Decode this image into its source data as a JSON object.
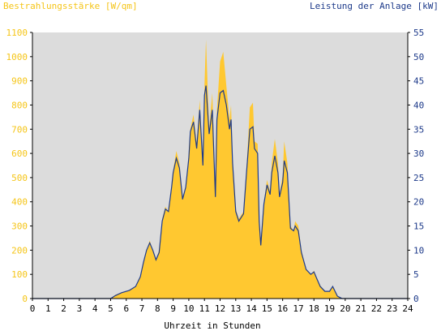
{
  "colors": {
    "irradiance": "#ffc830",
    "power": "#1d3a8a",
    "plot_bg": "#dcdcdc",
    "left_axis_text": "#f5c518",
    "right_axis_text": "#1d3a8a"
  },
  "chart_data": {
    "type": "area",
    "title_left": "Bestrahlungsstärke [W/qm]",
    "title_right": "Leistung der Anlage [kW]",
    "xlabel": "Uhrzeit in Stunden",
    "x_ticks": [
      "0",
      "1",
      "2",
      "3",
      "4",
      "5",
      "6",
      "7",
      "8",
      "9",
      "10",
      "11",
      "12",
      "13",
      "14",
      "15",
      "16",
      "17",
      "18",
      "19",
      "20",
      "21",
      "22",
      "23",
      "24"
    ],
    "y_left_ticks": [
      "0",
      "100",
      "200",
      "300",
      "400",
      "500",
      "600",
      "700",
      "800",
      "900",
      "1000",
      "1100"
    ],
    "y_right_ticks": [
      "0",
      "5",
      "10",
      "15",
      "20",
      "25",
      "30",
      "35",
      "40",
      "45",
      "50",
      "55"
    ],
    "xlim": [
      0,
      24
    ],
    "ylim_left": [
      0,
      1100
    ],
    "ylim_right": [
      0,
      55
    ],
    "grid": false,
    "series": [
      {
        "type": "area",
        "axis": "left",
        "color": "#ffc830",
        "points": [
          [
            0,
            0
          ],
          [
            5.0,
            0
          ],
          [
            5.3,
            15
          ],
          [
            5.7,
            25
          ],
          [
            6.2,
            35
          ],
          [
            6.6,
            50
          ],
          [
            6.9,
            90
          ],
          [
            7.1,
            150
          ],
          [
            7.3,
            200
          ],
          [
            7.5,
            240
          ],
          [
            7.7,
            200
          ],
          [
            7.9,
            160
          ],
          [
            8.1,
            200
          ],
          [
            8.3,
            330
          ],
          [
            8.5,
            380
          ],
          [
            8.7,
            360
          ],
          [
            8.9,
            460
          ],
          [
            9.0,
            530
          ],
          [
            9.2,
            610
          ],
          [
            9.4,
            560
          ],
          [
            9.6,
            420
          ],
          [
            9.8,
            460
          ],
          [
            10.0,
            600
          ],
          [
            10.1,
            700
          ],
          [
            10.3,
            760
          ],
          [
            10.5,
            640
          ],
          [
            10.7,
            820
          ],
          [
            10.9,
            560
          ],
          [
            11.0,
            880
          ],
          [
            11.1,
            1070
          ],
          [
            11.3,
            700
          ],
          [
            11.5,
            850
          ],
          [
            11.7,
            430
          ],
          [
            11.8,
            780
          ],
          [
            12.0,
            980
          ],
          [
            12.2,
            1020
          ],
          [
            12.4,
            880
          ],
          [
            12.6,
            740
          ],
          [
            12.7,
            800
          ],
          [
            12.8,
            580
          ],
          [
            13.0,
            370
          ],
          [
            13.2,
            330
          ],
          [
            13.5,
            360
          ],
          [
            13.7,
            550
          ],
          [
            13.9,
            790
          ],
          [
            14.1,
            810
          ],
          [
            14.2,
            650
          ],
          [
            14.4,
            640
          ],
          [
            14.5,
            330
          ],
          [
            14.6,
            240
          ],
          [
            14.8,
            400
          ],
          [
            15.0,
            490
          ],
          [
            15.2,
            440
          ],
          [
            15.3,
            560
          ],
          [
            15.5,
            660
          ],
          [
            15.7,
            560
          ],
          [
            15.8,
            430
          ],
          [
            16.0,
            510
          ],
          [
            16.1,
            650
          ],
          [
            16.3,
            560
          ],
          [
            16.5,
            300
          ],
          [
            16.7,
            280
          ],
          [
            16.8,
            320
          ],
          [
            17.0,
            300
          ],
          [
            17.2,
            200
          ],
          [
            17.5,
            120
          ],
          [
            17.8,
            100
          ],
          [
            18.0,
            115
          ],
          [
            18.2,
            80
          ],
          [
            18.4,
            55
          ],
          [
            18.7,
            30
          ],
          [
            19.0,
            30
          ],
          [
            19.2,
            50
          ],
          [
            19.5,
            10
          ],
          [
            19.8,
            0
          ],
          [
            24,
            0
          ]
        ]
      },
      {
        "type": "line",
        "axis": "right",
        "color": "#1d3a8a",
        "points": [
          [
            0,
            0
          ],
          [
            5.0,
            0
          ],
          [
            5.3,
            0.6
          ],
          [
            5.7,
            1.2
          ],
          [
            6.2,
            1.7
          ],
          [
            6.6,
            2.5
          ],
          [
            6.9,
            4.5
          ],
          [
            7.1,
            7.5
          ],
          [
            7.3,
            10
          ],
          [
            7.5,
            11.5
          ],
          [
            7.7,
            10
          ],
          [
            7.9,
            8
          ],
          [
            8.1,
            9.5
          ],
          [
            8.3,
            16
          ],
          [
            8.5,
            18.5
          ],
          [
            8.7,
            18
          ],
          [
            8.9,
            23
          ],
          [
            9.0,
            26
          ],
          [
            9.2,
            29
          ],
          [
            9.4,
            27
          ],
          [
            9.6,
            20.5
          ],
          [
            9.8,
            23
          ],
          [
            10.0,
            29
          ],
          [
            10.1,
            34.5
          ],
          [
            10.3,
            36.5
          ],
          [
            10.5,
            31
          ],
          [
            10.7,
            39
          ],
          [
            10.9,
            27.5
          ],
          [
            11.0,
            42
          ],
          [
            11.1,
            44
          ],
          [
            11.3,
            34
          ],
          [
            11.5,
            39
          ],
          [
            11.7,
            21
          ],
          [
            11.8,
            37
          ],
          [
            12.0,
            42.5
          ],
          [
            12.2,
            43
          ],
          [
            12.4,
            40
          ],
          [
            12.6,
            35
          ],
          [
            12.7,
            37
          ],
          [
            12.8,
            28
          ],
          [
            13.0,
            18
          ],
          [
            13.2,
            16
          ],
          [
            13.5,
            17.5
          ],
          [
            13.7,
            26.5
          ],
          [
            13.9,
            35
          ],
          [
            14.1,
            35.5
          ],
          [
            14.2,
            31
          ],
          [
            14.4,
            30
          ],
          [
            14.5,
            16
          ],
          [
            14.6,
            11
          ],
          [
            14.8,
            19.5
          ],
          [
            15.0,
            23.5
          ],
          [
            15.2,
            21.5
          ],
          [
            15.3,
            26
          ],
          [
            15.5,
            29.5
          ],
          [
            15.7,
            26
          ],
          [
            15.8,
            21
          ],
          [
            16.0,
            24
          ],
          [
            16.1,
            28.5
          ],
          [
            16.3,
            26
          ],
          [
            16.5,
            14.5
          ],
          [
            16.7,
            14
          ],
          [
            16.8,
            15
          ],
          [
            17.0,
            14
          ],
          [
            17.2,
            9.5
          ],
          [
            17.5,
            6
          ],
          [
            17.8,
            5
          ],
          [
            18.0,
            5.5
          ],
          [
            18.2,
            4
          ],
          [
            18.4,
            2.5
          ],
          [
            18.7,
            1.5
          ],
          [
            19.0,
            1.5
          ],
          [
            19.2,
            2.5
          ],
          [
            19.5,
            0.5
          ],
          [
            19.8,
            0
          ],
          [
            24,
            0
          ]
        ]
      }
    ]
  }
}
